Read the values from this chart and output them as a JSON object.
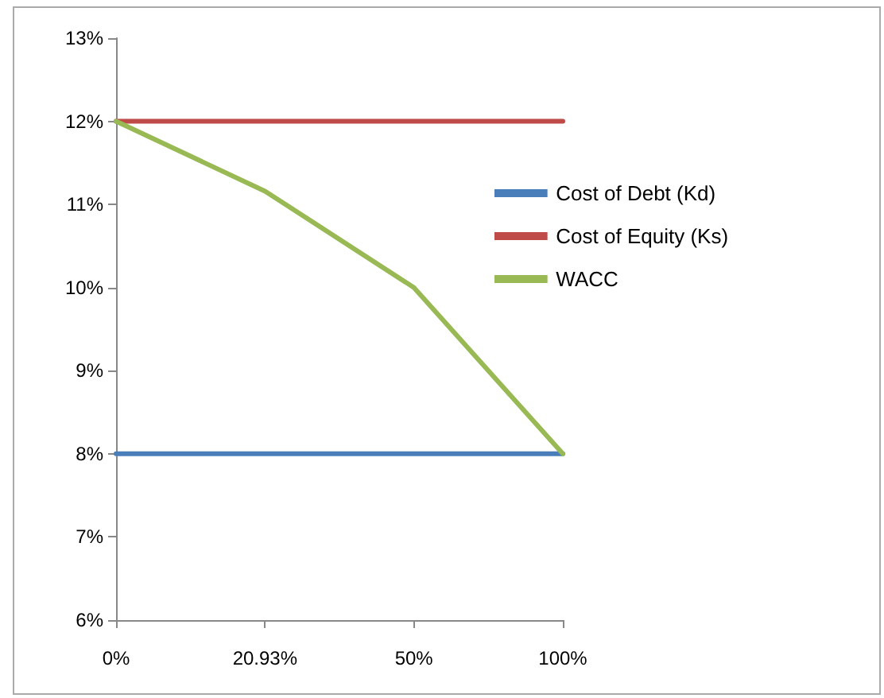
{
  "chart_data": {
    "type": "line",
    "categories": [
      "0%",
      "20.93%",
      "50%",
      "100%"
    ],
    "series": [
      {
        "name": "Cost of Debt (Kd)",
        "color": "#4a7ebb",
        "values": [
          8,
          8,
          8,
          8
        ]
      },
      {
        "name": "Cost of Equity (Ks)",
        "color": "#be4b48",
        "values": [
          12,
          12,
          12,
          12
        ]
      },
      {
        "name": "WACC",
        "color": "#98b954",
        "values": [
          12,
          11.16,
          10,
          8
        ]
      }
    ],
    "ylim": [
      6,
      13
    ],
    "yticks": [
      {
        "value": 6,
        "label": "6%"
      },
      {
        "value": 7,
        "label": "7%"
      },
      {
        "value": 8,
        "label": "8%"
      },
      {
        "value": 9,
        "label": "9%"
      },
      {
        "value": 10,
        "label": "10%"
      },
      {
        "value": 11,
        "label": "11%"
      },
      {
        "value": 12,
        "label": "12%"
      },
      {
        "value": 13,
        "label": "13%"
      }
    ],
    "grid": false,
    "legend": "right",
    "marker": "none",
    "line_style": "solid"
  }
}
